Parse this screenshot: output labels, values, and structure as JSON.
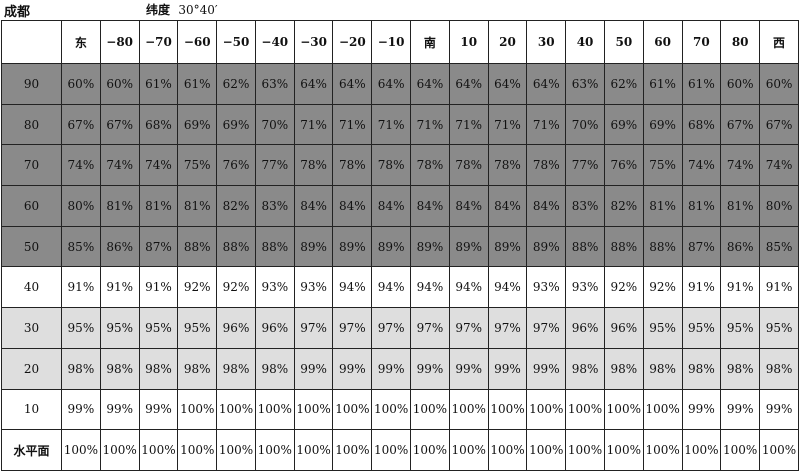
{
  "city": "成都",
  "latitude_label": "纬度",
  "latitude_value": "30°40′",
  "columns": [
    "东",
    "−80",
    "−70",
    "−60",
    "−50",
    "−40",
    "−30",
    "−20",
    "−10",
    "南",
    "10",
    "20",
    "30",
    "40",
    "50",
    "60",
    "70",
    "80",
    "西"
  ],
  "rows": [
    {
      "label": "90",
      "shade": "dark",
      "values": [
        "60%",
        "60%",
        "61%",
        "61%",
        "62%",
        "63%",
        "64%",
        "64%",
        "64%",
        "64%",
        "64%",
        "64%",
        "64%",
        "63%",
        "62%",
        "61%",
        "61%",
        "60%",
        "60%"
      ]
    },
    {
      "label": "80",
      "shade": "dark",
      "values": [
        "67%",
        "67%",
        "68%",
        "69%",
        "69%",
        "70%",
        "71%",
        "71%",
        "71%",
        "71%",
        "71%",
        "71%",
        "71%",
        "70%",
        "69%",
        "69%",
        "68%",
        "67%",
        "67%"
      ]
    },
    {
      "label": "70",
      "shade": "dark",
      "values": [
        "74%",
        "74%",
        "74%",
        "75%",
        "76%",
        "77%",
        "78%",
        "78%",
        "78%",
        "78%",
        "78%",
        "78%",
        "78%",
        "77%",
        "76%",
        "75%",
        "74%",
        "74%",
        "74%"
      ]
    },
    {
      "label": "60",
      "shade": "dark",
      "values": [
        "80%",
        "81%",
        "81%",
        "81%",
        "82%",
        "83%",
        "84%",
        "84%",
        "84%",
        "84%",
        "84%",
        "84%",
        "84%",
        "83%",
        "82%",
        "81%",
        "81%",
        "81%",
        "80%"
      ]
    },
    {
      "label": "50",
      "shade": "dark",
      "values": [
        "85%",
        "86%",
        "87%",
        "88%",
        "88%",
        "88%",
        "89%",
        "89%",
        "89%",
        "89%",
        "89%",
        "89%",
        "89%",
        "88%",
        "88%",
        "88%",
        "87%",
        "86%",
        "85%"
      ]
    },
    {
      "label": "40",
      "shade": "white",
      "values": [
        "91%",
        "91%",
        "91%",
        "92%",
        "92%",
        "93%",
        "93%",
        "94%",
        "94%",
        "94%",
        "94%",
        "94%",
        "93%",
        "93%",
        "92%",
        "92%",
        "91%",
        "91%",
        "91%"
      ]
    },
    {
      "label": "30",
      "shade": "light",
      "values": [
        "95%",
        "95%",
        "95%",
        "95%",
        "96%",
        "96%",
        "97%",
        "97%",
        "97%",
        "97%",
        "97%",
        "97%",
        "97%",
        "96%",
        "96%",
        "95%",
        "95%",
        "95%",
        "95%"
      ]
    },
    {
      "label": "20",
      "shade": "light",
      "values": [
        "98%",
        "98%",
        "98%",
        "98%",
        "98%",
        "98%",
        "99%",
        "99%",
        "99%",
        "99%",
        "99%",
        "99%",
        "99%",
        "98%",
        "98%",
        "98%",
        "98%",
        "98%",
        "98%"
      ]
    },
    {
      "label": "10",
      "shade": "white",
      "values": [
        "99%",
        "99%",
        "99%",
        "100%",
        "100%",
        "100%",
        "100%",
        "100%",
        "100%",
        "100%",
        "100%",
        "100%",
        "100%",
        "100%",
        "100%",
        "100%",
        "99%",
        "99%",
        "99%"
      ]
    },
    {
      "label": "水平面",
      "shade": "white",
      "bold": true,
      "values": [
        "100%",
        "100%",
        "100%",
        "100%",
        "100%",
        "100%",
        "100%",
        "100%",
        "100%",
        "100%",
        "100%",
        "100%",
        "100%",
        "100%",
        "100%",
        "100%",
        "100%",
        "100%",
        "100%"
      ]
    }
  ],
  "shade_colors": {
    "dark": "#8a8a8a",
    "light": "#dedede",
    "white": "#ffffff"
  }
}
